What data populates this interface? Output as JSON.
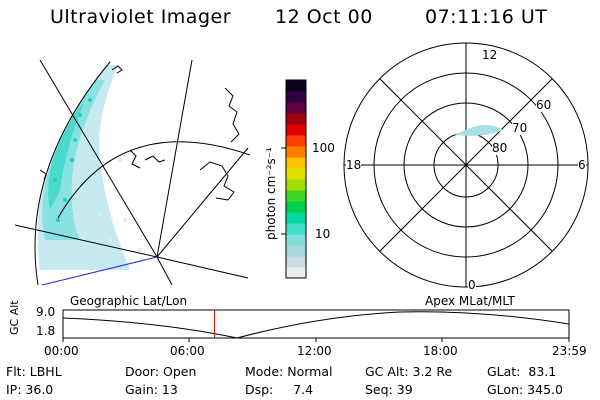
{
  "header": {
    "instrument": "Ultraviolet Imager",
    "date": "12 Oct 00",
    "time": "07:11:16 UT"
  },
  "colorbar": {
    "unit_label": "photon cm⁻²s⁻¹",
    "ticks": [
      {
        "label": "100",
        "value": 100
      },
      {
        "label": "10",
        "value": 10
      }
    ],
    "colors": [
      "#e8eef2",
      "#c8dde2",
      "#a8d8dc",
      "#80e0d8",
      "#40e0c8",
      "#00d8a0",
      "#00d050",
      "#40d820",
      "#a0e000",
      "#e0e000",
      "#ffc000",
      "#ff8000",
      "#ff4000",
      "#e00000",
      "#a00010",
      "#600040",
      "#300040",
      "#100020"
    ]
  },
  "panels": {
    "left_label": "Geographic Lat/Lon",
    "right_label": "Apex MLat/MLT"
  },
  "polar_plot": {
    "mlt_labels": {
      "top": "12",
      "bottom": "0",
      "left": "18",
      "right": "6"
    },
    "lat_labels": [
      "60",
      "70",
      "80"
    ]
  },
  "altitude_plot": {
    "ylabel": "GC Alt",
    "yticks": [
      "9.0",
      "1.8"
    ],
    "xticks": [
      "00:00",
      "06:00",
      "12:00",
      "18:00",
      "23:59"
    ],
    "marker_time": "07:11",
    "marker_color": "#dd0000"
  },
  "info": {
    "filter": "Flt: LBHL",
    "door": "Door: Open",
    "mode": "Mode: Normal",
    "gc_alt": "GC Alt: 3.2 Re",
    "glat": "GLat:  83.1",
    "ip": "IP: 36.0",
    "gain": "Gain: 13",
    "dsp": "Dsp:     7.4",
    "seq": "Seq: 39",
    "glon": "GLon: 345.0"
  }
}
